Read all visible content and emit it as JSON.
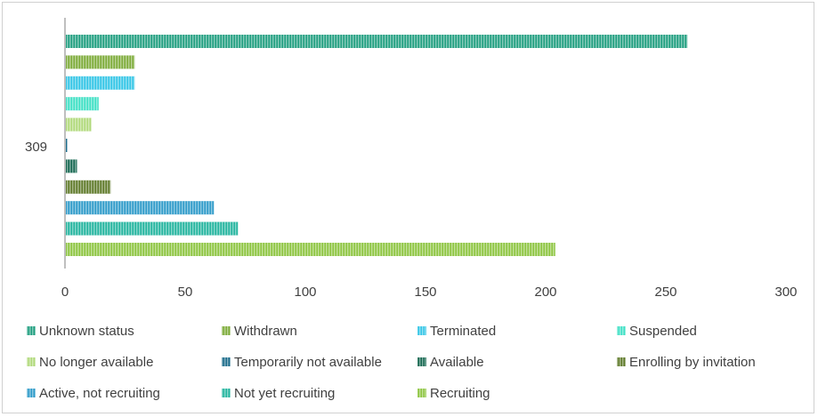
{
  "chart_data": {
    "type": "bar",
    "orientation": "horizontal",
    "category_label": "309",
    "xlim": [
      0,
      300
    ],
    "x_ticks": [
      "0",
      "50",
      "100",
      "150",
      "200",
      "250",
      "300"
    ],
    "grid": false,
    "legend_position": "bottom",
    "series": [
      {
        "name": "Unknown status",
        "value": 259,
        "color": "#1f9e7f"
      },
      {
        "name": "Withdrawn",
        "value": 29,
        "color": "#7cab38"
      },
      {
        "name": "Terminated",
        "value": 29,
        "color": "#33c5e6"
      },
      {
        "name": "Suspended",
        "value": 14,
        "color": "#3fe0c5"
      },
      {
        "name": "No longer available",
        "value": 11,
        "color": "#b0d97a"
      },
      {
        "name": "Temporarily not available",
        "value": 1,
        "color": "#1a6b8a"
      },
      {
        "name": "Available",
        "value": 5,
        "color": "#13664f"
      },
      {
        "name": "Enrolling by invitation",
        "value": 19,
        "color": "#5f7a2a"
      },
      {
        "name": "Active, not recruiting",
        "value": 62,
        "color": "#2e9ac9"
      },
      {
        "name": "Not yet recruiting",
        "value": 72,
        "color": "#22b49e"
      },
      {
        "name": "Recruiting",
        "value": 204,
        "color": "#8cc43f"
      }
    ]
  }
}
